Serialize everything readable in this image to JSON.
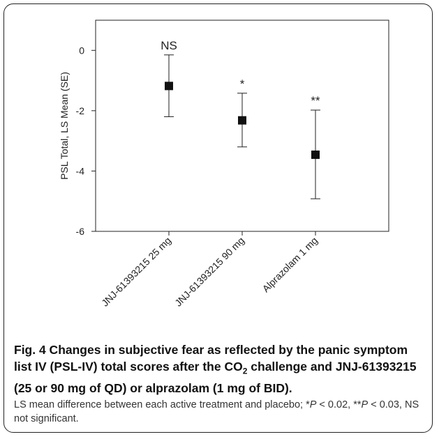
{
  "chart_data": {
    "type": "scatter",
    "categories": [
      "JNJ-61393215 25 mg",
      "JNJ-61393215 90 mg",
      "Alprazolam 1 mg"
    ],
    "series": [
      {
        "values": [
          -1.18,
          -2.32,
          -3.46
        ],
        "error_lower": [
          -2.2,
          -3.2,
          -4.92
        ],
        "error_upper": [
          -0.15,
          -1.42,
          -1.98
        ],
        "annotations": [
          "NS",
          "*",
          "**"
        ]
      }
    ],
    "ylabel": "PSL Total, LS Mean (SE)",
    "xlabel": "",
    "ylim": [
      -6,
      1
    ],
    "yticks": [
      0,
      -2,
      -4,
      -6
    ],
    "grid": false,
    "legend": "none"
  },
  "caption": {
    "title_part1": "Fig. 4 Changes in subjective fear as reflected by the panic symptom list IV (PSL-IV) total scores after the CO",
    "title_sub": "2",
    "title_part2": " challenge and JNJ-61393215 (25 or 90 mg of QD) or alprazolam (1 mg of BID).",
    "body_part1": "LS mean difference between each active treatment and placebo; *",
    "p1": "P",
    "body_part2": " < 0.02, **",
    "p2": "P",
    "body_part3": " < 0.03, NS not significant."
  }
}
